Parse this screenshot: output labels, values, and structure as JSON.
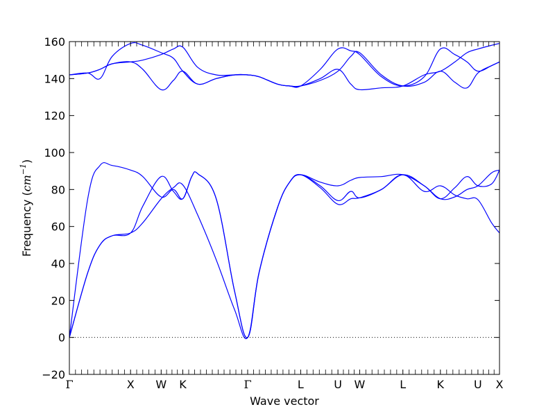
{
  "chart_data": {
    "type": "line",
    "title": "",
    "xlabel": "Wave vector",
    "ylabel": {
      "prefix": "Frequency (",
      "unit": "cm",
      "exponent": "−1",
      "suffix": ")"
    },
    "ylim": [
      -20,
      160
    ],
    "yticks": [
      -20,
      0,
      20,
      40,
      60,
      80,
      100,
      120,
      140,
      160
    ],
    "ytick_labels": [
      "−20",
      "0",
      "20",
      "40",
      "60",
      "80",
      "100",
      "120",
      "140",
      "160"
    ],
    "grid": false,
    "line_color": "#0000ff",
    "zero_line": {
      "y": 0,
      "style": "dotted",
      "color": "#000000"
    },
    "high_symmetry_points": [
      {
        "label": "Γ",
        "x": 0.0
      },
      {
        "label": "X",
        "x": 1.0
      },
      {
        "label": "W",
        "x": 1.5
      },
      {
        "label": "K",
        "x": 1.854
      },
      {
        "label": "Γ",
        "x": 2.914
      },
      {
        "label": "L",
        "x": 3.78
      },
      {
        "label": "U",
        "x": 4.39
      },
      {
        "label": "W",
        "x": 4.744
      },
      {
        "label": "L",
        "x": 5.451
      },
      {
        "label": "K",
        "x": 6.064
      },
      {
        "label": "U",
        "x": 6.677
      },
      {
        "label": "X",
        "x": 7.03
      }
    ],
    "series": [
      {
        "x": [
          0.0,
          0.3,
          0.5,
          0.7,
          1.0,
          1.2,
          1.5,
          1.7,
          1.854,
          2.1,
          2.4,
          2.7,
          2.914,
          3.1,
          3.4,
          3.6,
          3.78,
          4.1,
          4.39,
          4.6,
          4.744,
          5.1,
          5.451,
          5.8,
          6.064,
          6.3,
          6.5,
          6.677,
          6.9,
          7.03
        ],
        "y": [
          0,
          35,
          50,
          55,
          56.5,
          62,
          75,
          81,
          82.5,
          66,
          42,
          15,
          0,
          35,
          70,
          84,
          88,
          82,
          74,
          79,
          75.5,
          80,
          88,
          79,
          82,
          77,
          75,
          74.5,
          62,
          56.5
        ]
      },
      {
        "x": [
          0.0,
          0.3,
          0.5,
          0.7,
          1.0,
          1.2,
          1.5,
          1.7,
          1.854,
          2.0,
          2.1,
          2.4,
          2.7,
          2.914,
          3.1,
          3.4,
          3.6,
          3.78,
          4.1,
          4.39,
          4.6,
          4.744,
          5.1,
          5.451,
          5.8,
          6.064,
          6.3,
          6.5,
          6.677,
          6.9,
          7.03
        ],
        "y": [
          0,
          35,
          50,
          55,
          56.5,
          71,
          87,
          79,
          75,
          87,
          88.5,
          75,
          25,
          0,
          35,
          70,
          84,
          88,
          81,
          72,
          75,
          75.5,
          80,
          88,
          82,
          75,
          81,
          87,
          82,
          83,
          90.5
        ]
      },
      {
        "x": [
          0.0,
          0.3,
          0.5,
          0.7,
          1.0,
          1.2,
          1.5,
          1.7,
          1.854,
          2.0,
          2.1,
          2.4,
          2.7,
          2.914,
          3.1,
          3.4,
          3.6,
          3.78,
          4.1,
          4.39,
          4.6,
          4.744,
          5.1,
          5.451,
          5.8,
          6.064,
          6.3,
          6.5,
          6.677,
          6.9,
          7.03
        ],
        "y": [
          0,
          75,
          93,
          93,
          90.5,
          87,
          76,
          80,
          75,
          87,
          88.5,
          75,
          25,
          0,
          35,
          70,
          84,
          88,
          84,
          82,
          85,
          86.5,
          87,
          88,
          82,
          75,
          76,
          80,
          82,
          89,
          90.5
        ]
      },
      {
        "x": [
          0.0,
          0.3,
          0.5,
          0.7,
          1.0,
          1.2,
          1.5,
          1.7,
          1.854,
          2.1,
          2.4,
          2.7,
          2.914,
          3.1,
          3.4,
          3.6,
          3.78,
          4.1,
          4.39,
          4.6,
          4.744,
          5.1,
          5.451,
          5.8,
          6.064,
          6.3,
          6.5,
          6.677,
          6.9,
          7.03
        ],
        "y": [
          142,
          143,
          140,
          152,
          159,
          158,
          154,
          151,
          144,
          137,
          140,
          142,
          142,
          141,
          137,
          136,
          136,
          139,
          144,
          152,
          154,
          142,
          136,
          138,
          144,
          138,
          135,
          143,
          147,
          149
        ]
      },
      {
        "x": [
          0.0,
          0.3,
          0.5,
          0.7,
          1.0,
          1.2,
          1.5,
          1.7,
          1.854,
          2.1,
          2.4,
          2.7,
          2.914,
          3.1,
          3.4,
          3.6,
          3.78,
          4.1,
          4.39,
          4.6,
          4.744,
          5.1,
          5.451,
          5.8,
          6.064,
          6.3,
          6.5,
          6.677,
          6.9,
          7.03
        ],
        "y": [
          142,
          143,
          145,
          148,
          149,
          145,
          134,
          139,
          144,
          137,
          140,
          142,
          142,
          141,
          137,
          136,
          136,
          145,
          156,
          155,
          153,
          141,
          136,
          141,
          156,
          153,
          149,
          144,
          147,
          149
        ]
      },
      {
        "x": [
          0.0,
          0.3,
          0.5,
          0.7,
          1.0,
          1.2,
          1.5,
          1.7,
          1.854,
          2.1,
          2.4,
          2.7,
          2.914,
          3.1,
          3.4,
          3.6,
          3.78,
          4.1,
          4.39,
          4.6,
          4.744,
          5.1,
          5.451,
          5.8,
          6.064,
          6.3,
          6.5,
          6.677,
          6.9,
          7.03
        ],
        "y": [
          142,
          143,
          145,
          148,
          149,
          150,
          153,
          156,
          157,
          146,
          142,
          142,
          142,
          141,
          137,
          136,
          136,
          140,
          145,
          137,
          134,
          135,
          136,
          142,
          144,
          149,
          154,
          156,
          158,
          159
        ]
      }
    ]
  }
}
